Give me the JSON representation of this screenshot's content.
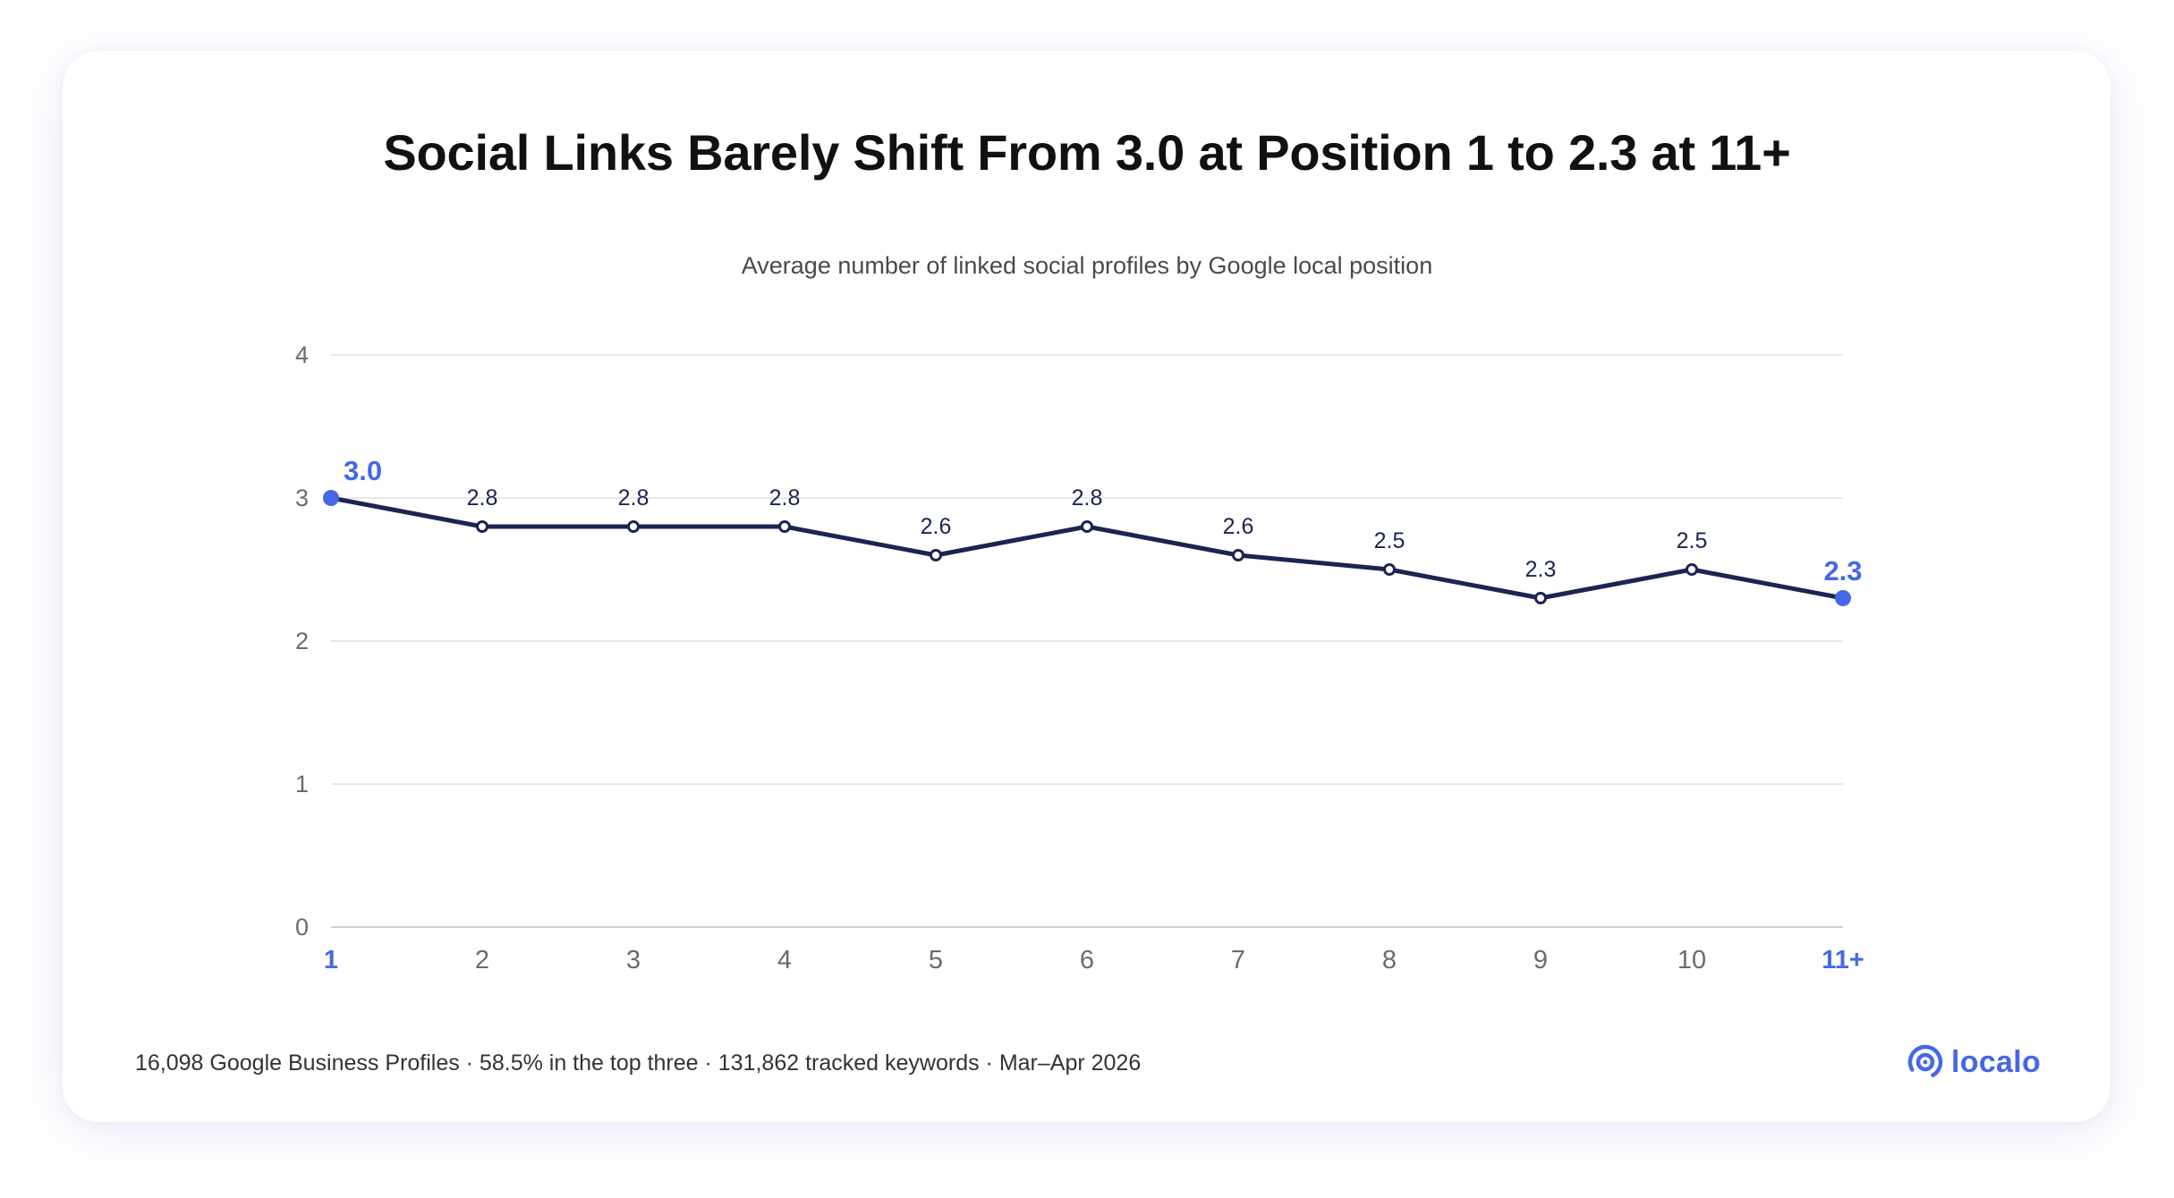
{
  "title": "Social Links Barely Shift From 3.0 at Position 1 to 2.3 at 11+",
  "subtitle": "Average number of linked social profiles by Google local position",
  "footer": "16,098 Google Business Profiles · 58.5% in the top three · 131,862 tracked keywords · Mar–Apr 2026",
  "logo": {
    "text": "localo",
    "icon": "localo-logo-icon"
  },
  "colors": {
    "line": "#1b2452",
    "highlight": "#4468e6",
    "grid": "#e0e0e0",
    "tick": "#6b6b6b"
  },
  "chart_data": {
    "type": "line",
    "title": "Social Links Barely Shift From 3.0 at Position 1 to 2.3 at 11+",
    "subtitle": "Average number of linked social profiles by Google local position",
    "categories": [
      "1",
      "2",
      "3",
      "4",
      "5",
      "6",
      "7",
      "8",
      "9",
      "10",
      "11+"
    ],
    "values": [
      3.0,
      2.8,
      2.8,
      2.8,
      2.6,
      2.8,
      2.6,
      2.5,
      2.3,
      2.5,
      2.3
    ],
    "data_labels": [
      "3.0",
      "2.8",
      "2.8",
      "2.8",
      "2.6",
      "2.8",
      "2.6",
      "2.5",
      "2.3",
      "2.5",
      "2.3"
    ],
    "highlighted_indices": [
      0,
      10
    ],
    "y_ticks": [
      "0",
      "1",
      "2",
      "3",
      "4"
    ],
    "ylim": [
      0,
      4
    ],
    "xlabel": "",
    "ylabel": "",
    "grid": true,
    "legend": "none"
  }
}
